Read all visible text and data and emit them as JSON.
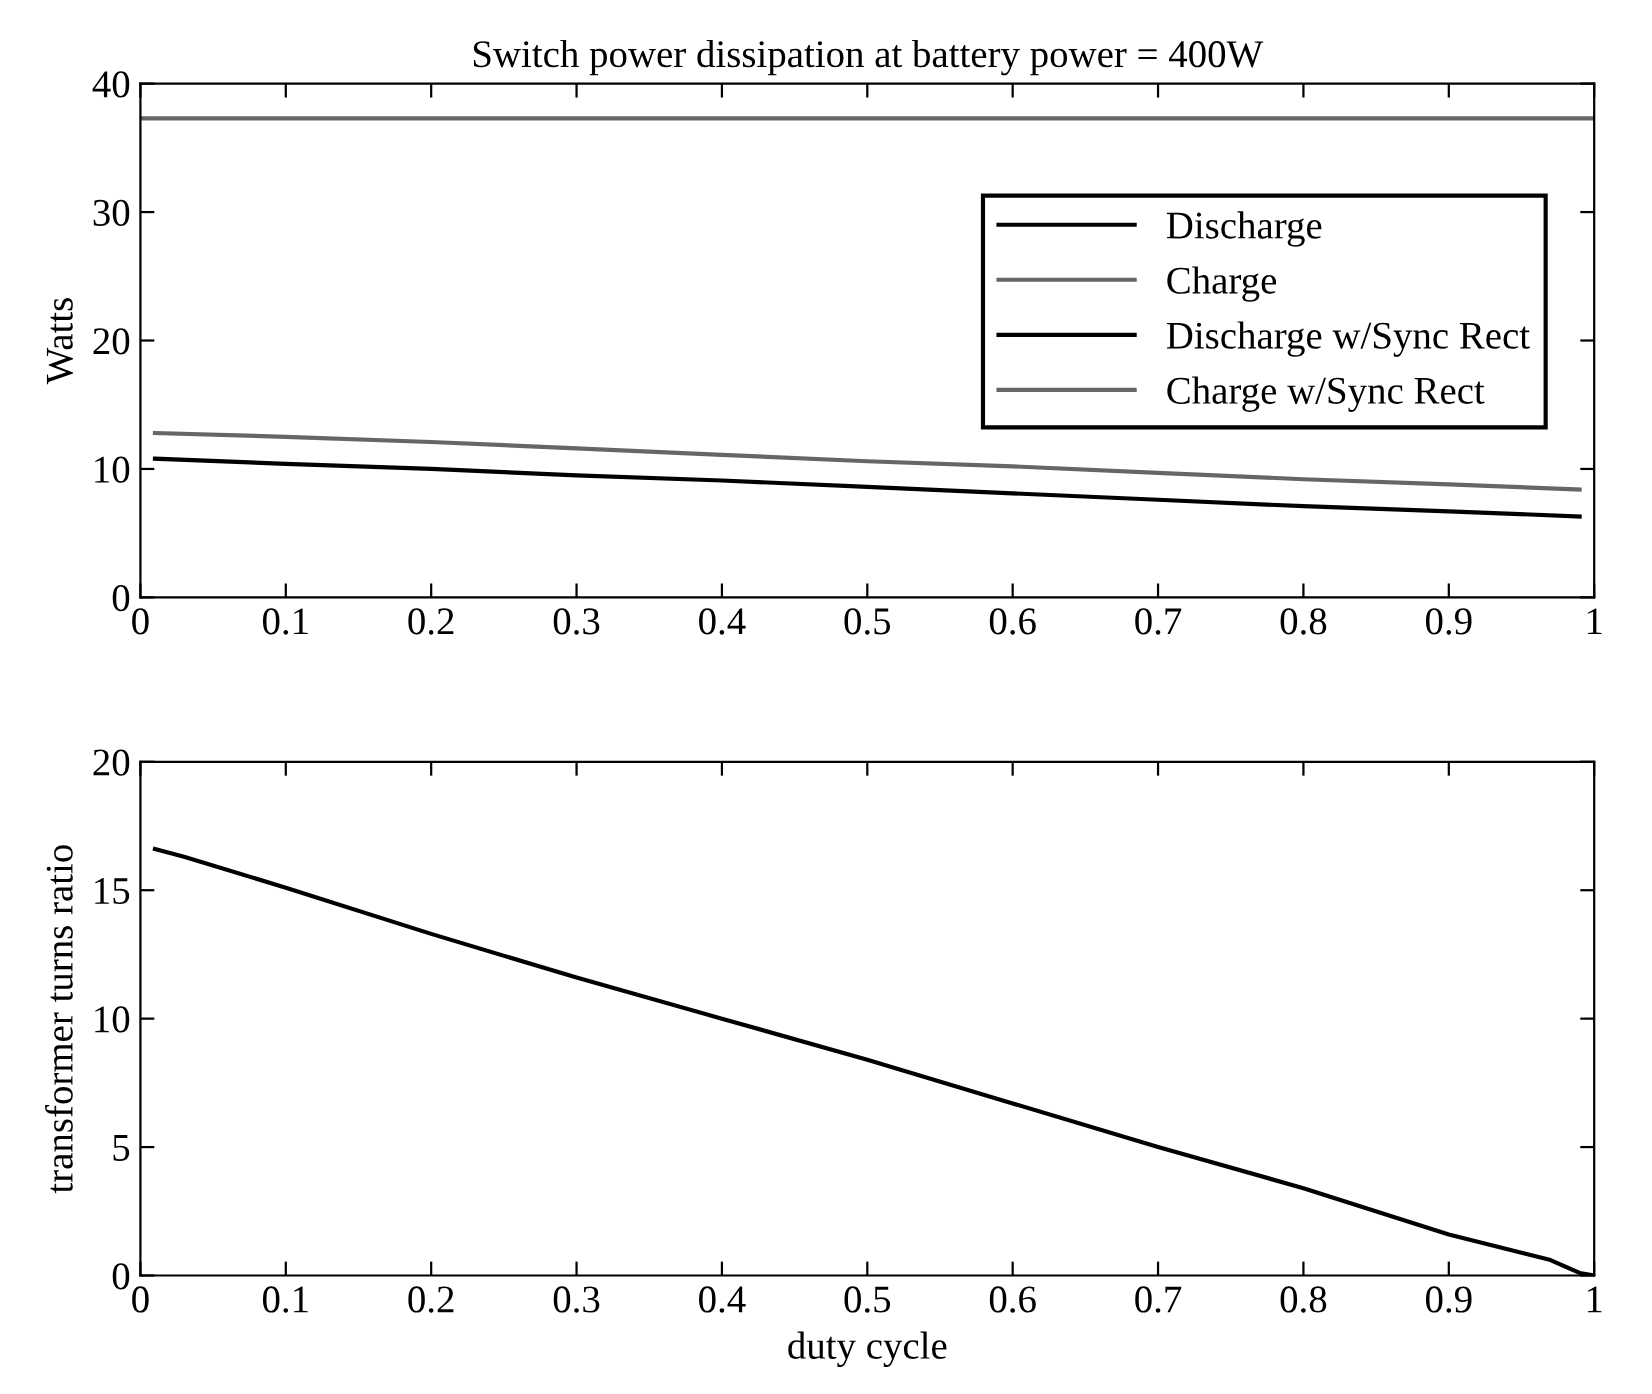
{
  "chart_data": [
    {
      "type": "line",
      "title": "Switch power dissipation at battery power = 400W",
      "ylabel": "Watts",
      "xlim": [
        0,
        1
      ],
      "ylim": [
        0,
        40
      ],
      "xticks": [
        0,
        0.1,
        0.2,
        0.3,
        0.4,
        0.5,
        0.6,
        0.7,
        0.8,
        0.9,
        1
      ],
      "yticks": [
        0,
        10,
        20,
        30,
        40
      ],
      "grid": false,
      "legend": "top right",
      "series": [
        {
          "name": "Discharge",
          "color": "#000000",
          "x": [
            0.01,
            0.1,
            0.2,
            0.3,
            0.4,
            0.5,
            0.6,
            0.7,
            0.8,
            0.9,
            0.99
          ],
          "values": [
            10.8,
            10.4,
            10.0,
            9.5,
            9.1,
            8.6,
            8.1,
            7.6,
            7.1,
            6.7,
            6.3
          ]
        },
        {
          "name": "Charge",
          "color": "#666666",
          "x": [
            0,
            1
          ],
          "values": [
            37.3,
            37.3
          ]
        },
        {
          "name": "Discharge w/Sync Rect",
          "color": "#000000"
        },
        {
          "name": "Charge w/Sync Rect",
          "color": "#666666",
          "x": [
            0.01,
            0.1,
            0.2,
            0.3,
            0.4,
            0.5,
            0.6,
            0.7,
            0.8,
            0.9,
            0.99
          ],
          "values": [
            12.8,
            12.5,
            12.1,
            11.6,
            11.1,
            10.6,
            10.2,
            9.7,
            9.2,
            8.8,
            8.4
          ]
        }
      ]
    },
    {
      "type": "line",
      "xlabel": "duty cycle",
      "ylabel": "transformer turns ratio",
      "xlim": [
        0,
        1
      ],
      "ylim": [
        0,
        20
      ],
      "xticks": [
        0,
        0.1,
        0.2,
        0.3,
        0.4,
        0.5,
        0.6,
        0.7,
        0.8,
        0.9,
        1
      ],
      "yticks": [
        0,
        5,
        10,
        15,
        20
      ],
      "grid": false,
      "legend": false,
      "series": [
        {
          "color": "#000000",
          "x": [
            0.01,
            0.03,
            0.1,
            0.2,
            0.3,
            0.4,
            0.5,
            0.6,
            0.7,
            0.8,
            0.9,
            0.97,
            0.99,
            1.0
          ],
          "values": [
            16.6,
            16.3,
            15.1,
            13.3,
            11.6,
            10.0,
            8.4,
            6.7,
            5.0,
            3.4,
            1.6,
            0.6,
            0.1,
            0
          ]
        }
      ]
    }
  ]
}
